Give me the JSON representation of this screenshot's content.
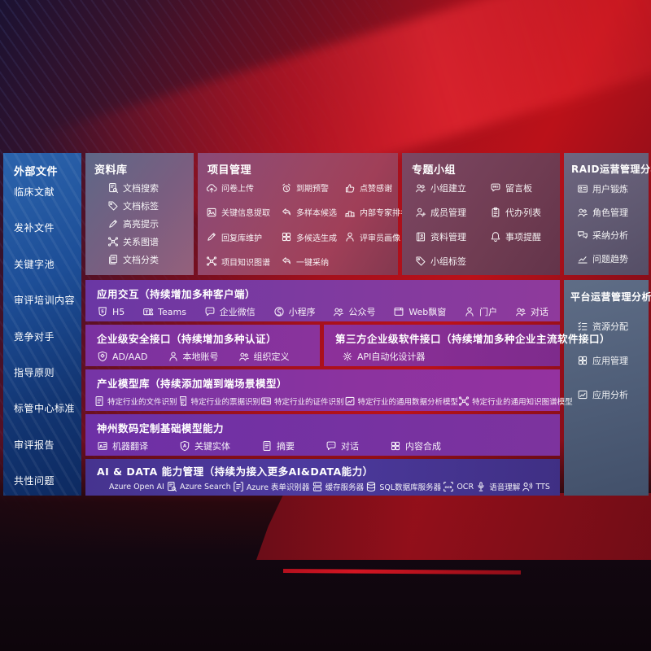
{
  "colors": {
    "background_red": "#b01118",
    "sidebar_blue": "#1d4e97",
    "band_purple": "#7d3aa0",
    "ai_band_indigo": "#4d3a9e",
    "panel_slate": "#51607a",
    "panel_mauve": "#5f5870"
  },
  "left_sidebar": {
    "title": "外部文件",
    "items": [
      {
        "label": "临床文献"
      },
      {
        "label": "发补文件"
      },
      {
        "label": "关键字池"
      },
      {
        "label": "审评培训内容"
      },
      {
        "label": "竞争对手"
      },
      {
        "label": "指导原则"
      },
      {
        "label": "标管中心标准"
      },
      {
        "label": "审评报告"
      },
      {
        "label": "共性问题"
      }
    ]
  },
  "panels": {
    "repo": {
      "title": "资料库",
      "items": [
        {
          "label": "文档搜索",
          "icon": "doc-search"
        },
        {
          "label": "文档标签",
          "icon": "tag"
        },
        {
          "label": "高亮提示",
          "icon": "pen"
        },
        {
          "label": "关系图谱",
          "icon": "graph"
        },
        {
          "label": "文档分类",
          "icon": "docs"
        }
      ]
    },
    "project": {
      "title": "项目管理",
      "items": [
        {
          "label": "问卷上传",
          "icon": "cloud-up"
        },
        {
          "label": "到期预警",
          "icon": "alarm"
        },
        {
          "label": "点赞感谢",
          "icon": "thumb"
        },
        {
          "label": "关键信息提取",
          "icon": "image-doc"
        },
        {
          "label": "多样本候选",
          "icon": "reply"
        },
        {
          "label": "内部专家排名",
          "icon": "podium"
        },
        {
          "label": "回复库维护",
          "icon": "pen"
        },
        {
          "label": "多候选生成",
          "icon": "grid"
        },
        {
          "label": "评审员画像",
          "icon": "person"
        },
        {
          "label": "项目知识图谱",
          "icon": "graph"
        },
        {
          "label": "一键采纳",
          "icon": "reply"
        }
      ]
    },
    "group": {
      "title": "专题小组",
      "items": [
        {
          "label": "小组建立",
          "icon": "people"
        },
        {
          "label": "留言板",
          "icon": "bbs"
        },
        {
          "label": "成员管理",
          "icon": "person-plus"
        },
        {
          "label": "代办列表",
          "icon": "clipboard"
        },
        {
          "label": "资料管理",
          "icon": "album"
        },
        {
          "label": "事项提醒",
          "icon": "bell"
        },
        {
          "label": "小组标签",
          "icon": "tag"
        }
      ]
    },
    "raid": {
      "title": "RAID运营管理分析",
      "items": [
        {
          "label": "用户锻炼",
          "icon": "id-card"
        },
        {
          "label": "角色管理",
          "icon": "people"
        },
        {
          "label": "采纳分析",
          "icon": "chat-qa"
        },
        {
          "label": "问题趋势",
          "icon": "chart"
        }
      ]
    },
    "platform": {
      "title": "平台运营管理分析",
      "items": [
        {
          "label": "资源分配",
          "icon": "checklist"
        },
        {
          "label": "应用管理",
          "icon": "grid"
        },
        {
          "label": "应用分析",
          "icon": "chart-card"
        }
      ]
    }
  },
  "bands": {
    "interaction": {
      "title": "应用交互（持续增加多种客户端）",
      "items": [
        {
          "label": "H5",
          "icon": "h5"
        },
        {
          "label": "Teams",
          "icon": "teams"
        },
        {
          "label": "企业微信",
          "icon": "chat-dots"
        },
        {
          "label": "小程序",
          "icon": "mini"
        },
        {
          "label": "公众号",
          "icon": "people"
        },
        {
          "label": "Web飘窗",
          "icon": "window"
        },
        {
          "label": "门户",
          "icon": "person"
        },
        {
          "label": "对话",
          "icon": "people"
        }
      ]
    },
    "security": {
      "title": "企业级安全接口（持续增加多种认证）",
      "items": [
        {
          "label": "AD/AAD",
          "icon": "shield"
        },
        {
          "label": "本地账号",
          "icon": "person"
        },
        {
          "label": "组织定义",
          "icon": "people"
        }
      ]
    },
    "thirdparty": {
      "title": "第三方企业级软件接口（持续增加多种企业主流软件接口）",
      "items": [
        {
          "label": "API自动化设计器",
          "icon": "gear"
        }
      ]
    },
    "industry": {
      "title": "产业模型库（持续添加端到端场景模型）",
      "items": [
        {
          "label": "特定行业的文件识别",
          "icon": "doc"
        },
        {
          "label": "特定行业的票据识别",
          "icon": "receipt"
        },
        {
          "label": "特定行业的证件识别",
          "icon": "id-card"
        },
        {
          "label": "特定行业的通用数据分析模型",
          "icon": "chart-card"
        },
        {
          "label": "特定行业的通用知识图谱模型",
          "icon": "graph"
        }
      ]
    },
    "base_models": {
      "title": "神州数码定制基础模型能力",
      "items": [
        {
          "label": "机器翻译",
          "icon": "translate"
        },
        {
          "label": "关键实体",
          "icon": "shield-a"
        },
        {
          "label": "摘要",
          "icon": "doc"
        },
        {
          "label": "对话",
          "icon": "chat-dots"
        },
        {
          "label": "内容合成",
          "icon": "grid"
        }
      ]
    },
    "ai_data": {
      "title": "AI & DATA 能力管理（持续为接入更多AI&DATA能力）",
      "items": [
        {
          "label": "Azure Open AI",
          "icon": "openai"
        },
        {
          "label": "Azure Search",
          "icon": "doc-search"
        },
        {
          "label": "Azure 表单识别器",
          "icon": "form"
        },
        {
          "label": "缓存服务器",
          "icon": "server"
        },
        {
          "label": "SQL数据库服务器",
          "icon": "db"
        },
        {
          "label": "OCR",
          "icon": "ocr"
        },
        {
          "label": "语音理解",
          "icon": "speech"
        },
        {
          "label": "TTS",
          "icon": "tts"
        }
      ]
    }
  }
}
